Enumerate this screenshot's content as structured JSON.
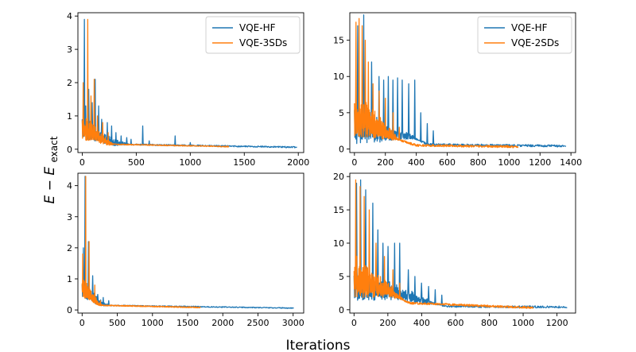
{
  "figure": {
    "ylabel_main": "E",
    "ylabel_minus": " − ",
    "ylabel_sub_base": "E",
    "ylabel_subscript": "exact",
    "xlabel": "Iterations"
  },
  "colors": {
    "hf": "#1f77b4",
    "sd": "#ff7f0e"
  },
  "chart_data": [
    {
      "type": "line",
      "id": "tl",
      "xlim": [
        -40,
        2050
      ],
      "ylim": [
        -0.1,
        4.1
      ],
      "xticks": [
        0,
        500,
        1000,
        1500,
        2000
      ],
      "yticks": [
        0,
        1,
        2,
        3,
        4
      ],
      "xtick_labels": [
        "0",
        "500",
        "1000",
        "1500",
        "2000"
      ],
      "ytick_labels": [
        "0",
        "1",
        "2",
        "3",
        "4"
      ],
      "legend": [
        "VQE-HF",
        "VQE-3SDs"
      ],
      "legend_position": "upper right",
      "series": [
        {
          "name": "VQE-HF",
          "end_x": 1990,
          "base": [
            [
              0,
              0.5
            ],
            [
              300,
              0.15
            ],
            [
              1990,
              0.06
            ]
          ],
          "osc_until": 450,
          "osc_amp": 0.45,
          "noise_amp": 0.04,
          "spikes": [
            [
              20,
              3.9
            ],
            [
              30,
              1.3
            ],
            [
              60,
              1.8
            ],
            [
              90,
              1.4
            ],
            [
              120,
              2.1
            ],
            [
              150,
              1.3
            ],
            [
              180,
              0.9
            ],
            [
              230,
              0.8
            ],
            [
              270,
              0.7
            ],
            [
              310,
              0.5
            ],
            [
              360,
              0.4
            ],
            [
              410,
              0.35
            ],
            [
              450,
              0.3
            ],
            [
              560,
              0.7
            ],
            [
              620,
              0.25
            ],
            [
              860,
              0.4
            ],
            [
              1000,
              0.2
            ]
          ]
        },
        {
          "name": "VQE-3SDs",
          "end_x": 1360,
          "base": [
            [
              0,
              0.5
            ],
            [
              250,
              0.15
            ],
            [
              1360,
              0.08
            ]
          ],
          "osc_until": 300,
          "osc_amp": 0.6,
          "noise_amp": 0.03,
          "spikes": [
            [
              10,
              2.0
            ],
            [
              50,
              3.9
            ],
            [
              80,
              1.6
            ],
            [
              110,
              2.1
            ],
            [
              140,
              1.0
            ],
            [
              190,
              0.8
            ],
            [
              240,
              0.5
            ]
          ]
        }
      ]
    },
    {
      "type": "line",
      "id": "tr",
      "xlim": [
        -30,
        1430
      ],
      "ylim": [
        -0.5,
        18.8
      ],
      "xticks": [
        0,
        200,
        400,
        600,
        800,
        1000,
        1200,
        1400
      ],
      "yticks": [
        0,
        5,
        10,
        15
      ],
      "xtick_labels": [
        "0",
        "200",
        "400",
        "600",
        "800",
        "1000",
        "1200",
        "1400"
      ],
      "ytick_labels": [
        "0",
        "5",
        "10",
        "15"
      ],
      "legend": [
        "VQE-HF",
        "VQE-2SDs"
      ],
      "legend_position": "upper right",
      "series": [
        {
          "name": "VQE-HF",
          "end_x": 1370,
          "base": [
            [
              0,
              2.0
            ],
            [
              380,
              1.5
            ],
            [
              480,
              0.6
            ],
            [
              1370,
              0.4
            ]
          ],
          "osc_until": 420,
          "osc_amp": 4.0,
          "noise_amp": 0.3,
          "spikes": [
            [
              20,
              17.0
            ],
            [
              60,
              18.5
            ],
            [
              110,
              12.0
            ],
            [
              160,
              10.0
            ],
            [
              190,
              9.5
            ],
            [
              220,
              10.0
            ],
            [
              250,
              9.5
            ],
            [
              280,
              9.8
            ],
            [
              310,
              9.5
            ],
            [
              350,
              9.0
            ],
            [
              390,
              9.5
            ],
            [
              430,
              5.0
            ],
            [
              470,
              3.5
            ],
            [
              510,
              2.5
            ]
          ]
        },
        {
          "name": "VQE-2SDs",
          "end_x": 1060,
          "base": [
            [
              0,
              3.5
            ],
            [
              250,
              1.5
            ],
            [
              400,
              0.5
            ],
            [
              1060,
              0.3
            ]
          ],
          "osc_until": 300,
          "osc_amp": 5.0,
          "noise_amp": 0.3,
          "spikes": [
            [
              10,
              17.5
            ],
            [
              30,
              18.0
            ],
            [
              50,
              17.0
            ],
            [
              70,
              15.0
            ],
            [
              90,
              12.0
            ],
            [
              120,
              9.0
            ],
            [
              160,
              8.0
            ],
            [
              200,
              7.0
            ],
            [
              250,
              5.0
            ],
            [
              290,
              3.0
            ]
          ]
        }
      ]
    },
    {
      "type": "line",
      "id": "bl",
      "xlim": [
        -60,
        3150
      ],
      "ylim": [
        -0.1,
        4.4
      ],
      "xticks": [
        0,
        500,
        1000,
        1500,
        2000,
        2500,
        3000
      ],
      "yticks": [
        0,
        1,
        2,
        3,
        4
      ],
      "xtick_labels": [
        "0",
        "500",
        "1000",
        "1500",
        "2000",
        "2500",
        "3000"
      ],
      "ytick_labels": [
        "0",
        "1",
        "2",
        "3",
        "4"
      ],
      "legend": [],
      "legend_position": "none",
      "series": [
        {
          "name": "VQE-HF",
          "end_x": 3010,
          "base": [
            [
              0,
              0.5
            ],
            [
              300,
              0.15
            ],
            [
              3010,
              0.06
            ]
          ],
          "osc_until": 400,
          "osc_amp": 0.4,
          "noise_amp": 0.03,
          "spikes": [
            [
              15,
              2.0
            ],
            [
              40,
              4.3
            ],
            [
              90,
              2.2
            ],
            [
              150,
              1.1
            ],
            [
              220,
              0.5
            ],
            [
              300,
              0.4
            ],
            [
              380,
              0.3
            ]
          ]
        },
        {
          "name": "VQE-2SDs",
          "end_x": 1680,
          "base": [
            [
              0,
              0.6
            ],
            [
              250,
              0.15
            ],
            [
              1680,
              0.08
            ]
          ],
          "osc_until": 300,
          "osc_amp": 0.5,
          "noise_amp": 0.03,
          "spikes": [
            [
              10,
              1.8
            ],
            [
              50,
              4.3
            ],
            [
              100,
              2.2
            ],
            [
              180,
              0.8
            ],
            [
              260,
              0.3
            ]
          ]
        }
      ]
    },
    {
      "type": "line",
      "id": "br",
      "xlim": [
        -25,
        1310
      ],
      "ylim": [
        -0.5,
        20.5
      ],
      "xticks": [
        0,
        200,
        400,
        600,
        800,
        1000,
        1200
      ],
      "yticks": [
        0,
        5,
        10,
        15,
        20
      ],
      "xtick_labels": [
        "0",
        "200",
        "400",
        "600",
        "800",
        "1000",
        "1200"
      ],
      "ytick_labels": [
        "0",
        "5",
        "10",
        "15",
        "20"
      ],
      "legend": [],
      "legend_position": "none",
      "series": [
        {
          "name": "VQE-HF",
          "end_x": 1260,
          "base": [
            [
              0,
              2.5
            ],
            [
              280,
              2.0
            ],
            [
              400,
              1.2
            ],
            [
              560,
              0.5
            ],
            [
              1260,
              0.4
            ]
          ],
          "osc_until": 520,
          "osc_amp": 3.5,
          "noise_amp": 0.3,
          "spikes": [
            [
              15,
              19.0
            ],
            [
              40,
              19.5
            ],
            [
              70,
              18.0
            ],
            [
              110,
              16.0
            ],
            [
              140,
              12.0
            ],
            [
              170,
              10.0
            ],
            [
              200,
              9.5
            ],
            [
              240,
              10.0
            ],
            [
              270,
              10.0
            ],
            [
              320,
              6.0
            ],
            [
              360,
              5.0
            ],
            [
              400,
              4.0
            ],
            [
              440,
              3.5
            ],
            [
              480,
              3.0
            ],
            [
              520,
              2.2
            ]
          ]
        },
        {
          "name": "VQE-2SDs",
          "end_x": 1060,
          "base": [
            [
              0,
              3.5
            ],
            [
              200,
              2.5
            ],
            [
              330,
              1.0
            ],
            [
              1060,
              0.3
            ]
          ],
          "osc_until": 300,
          "osc_amp": 5.0,
          "noise_amp": 0.3,
          "spikes": [
            [
              10,
              19.5
            ],
            [
              35,
              18.5
            ],
            [
              60,
              17.0
            ],
            [
              90,
              15.0
            ],
            [
              130,
              10.0
            ],
            [
              180,
              8.0
            ],
            [
              230,
              6.0
            ],
            [
              270,
              4.0
            ]
          ]
        }
      ]
    }
  ]
}
